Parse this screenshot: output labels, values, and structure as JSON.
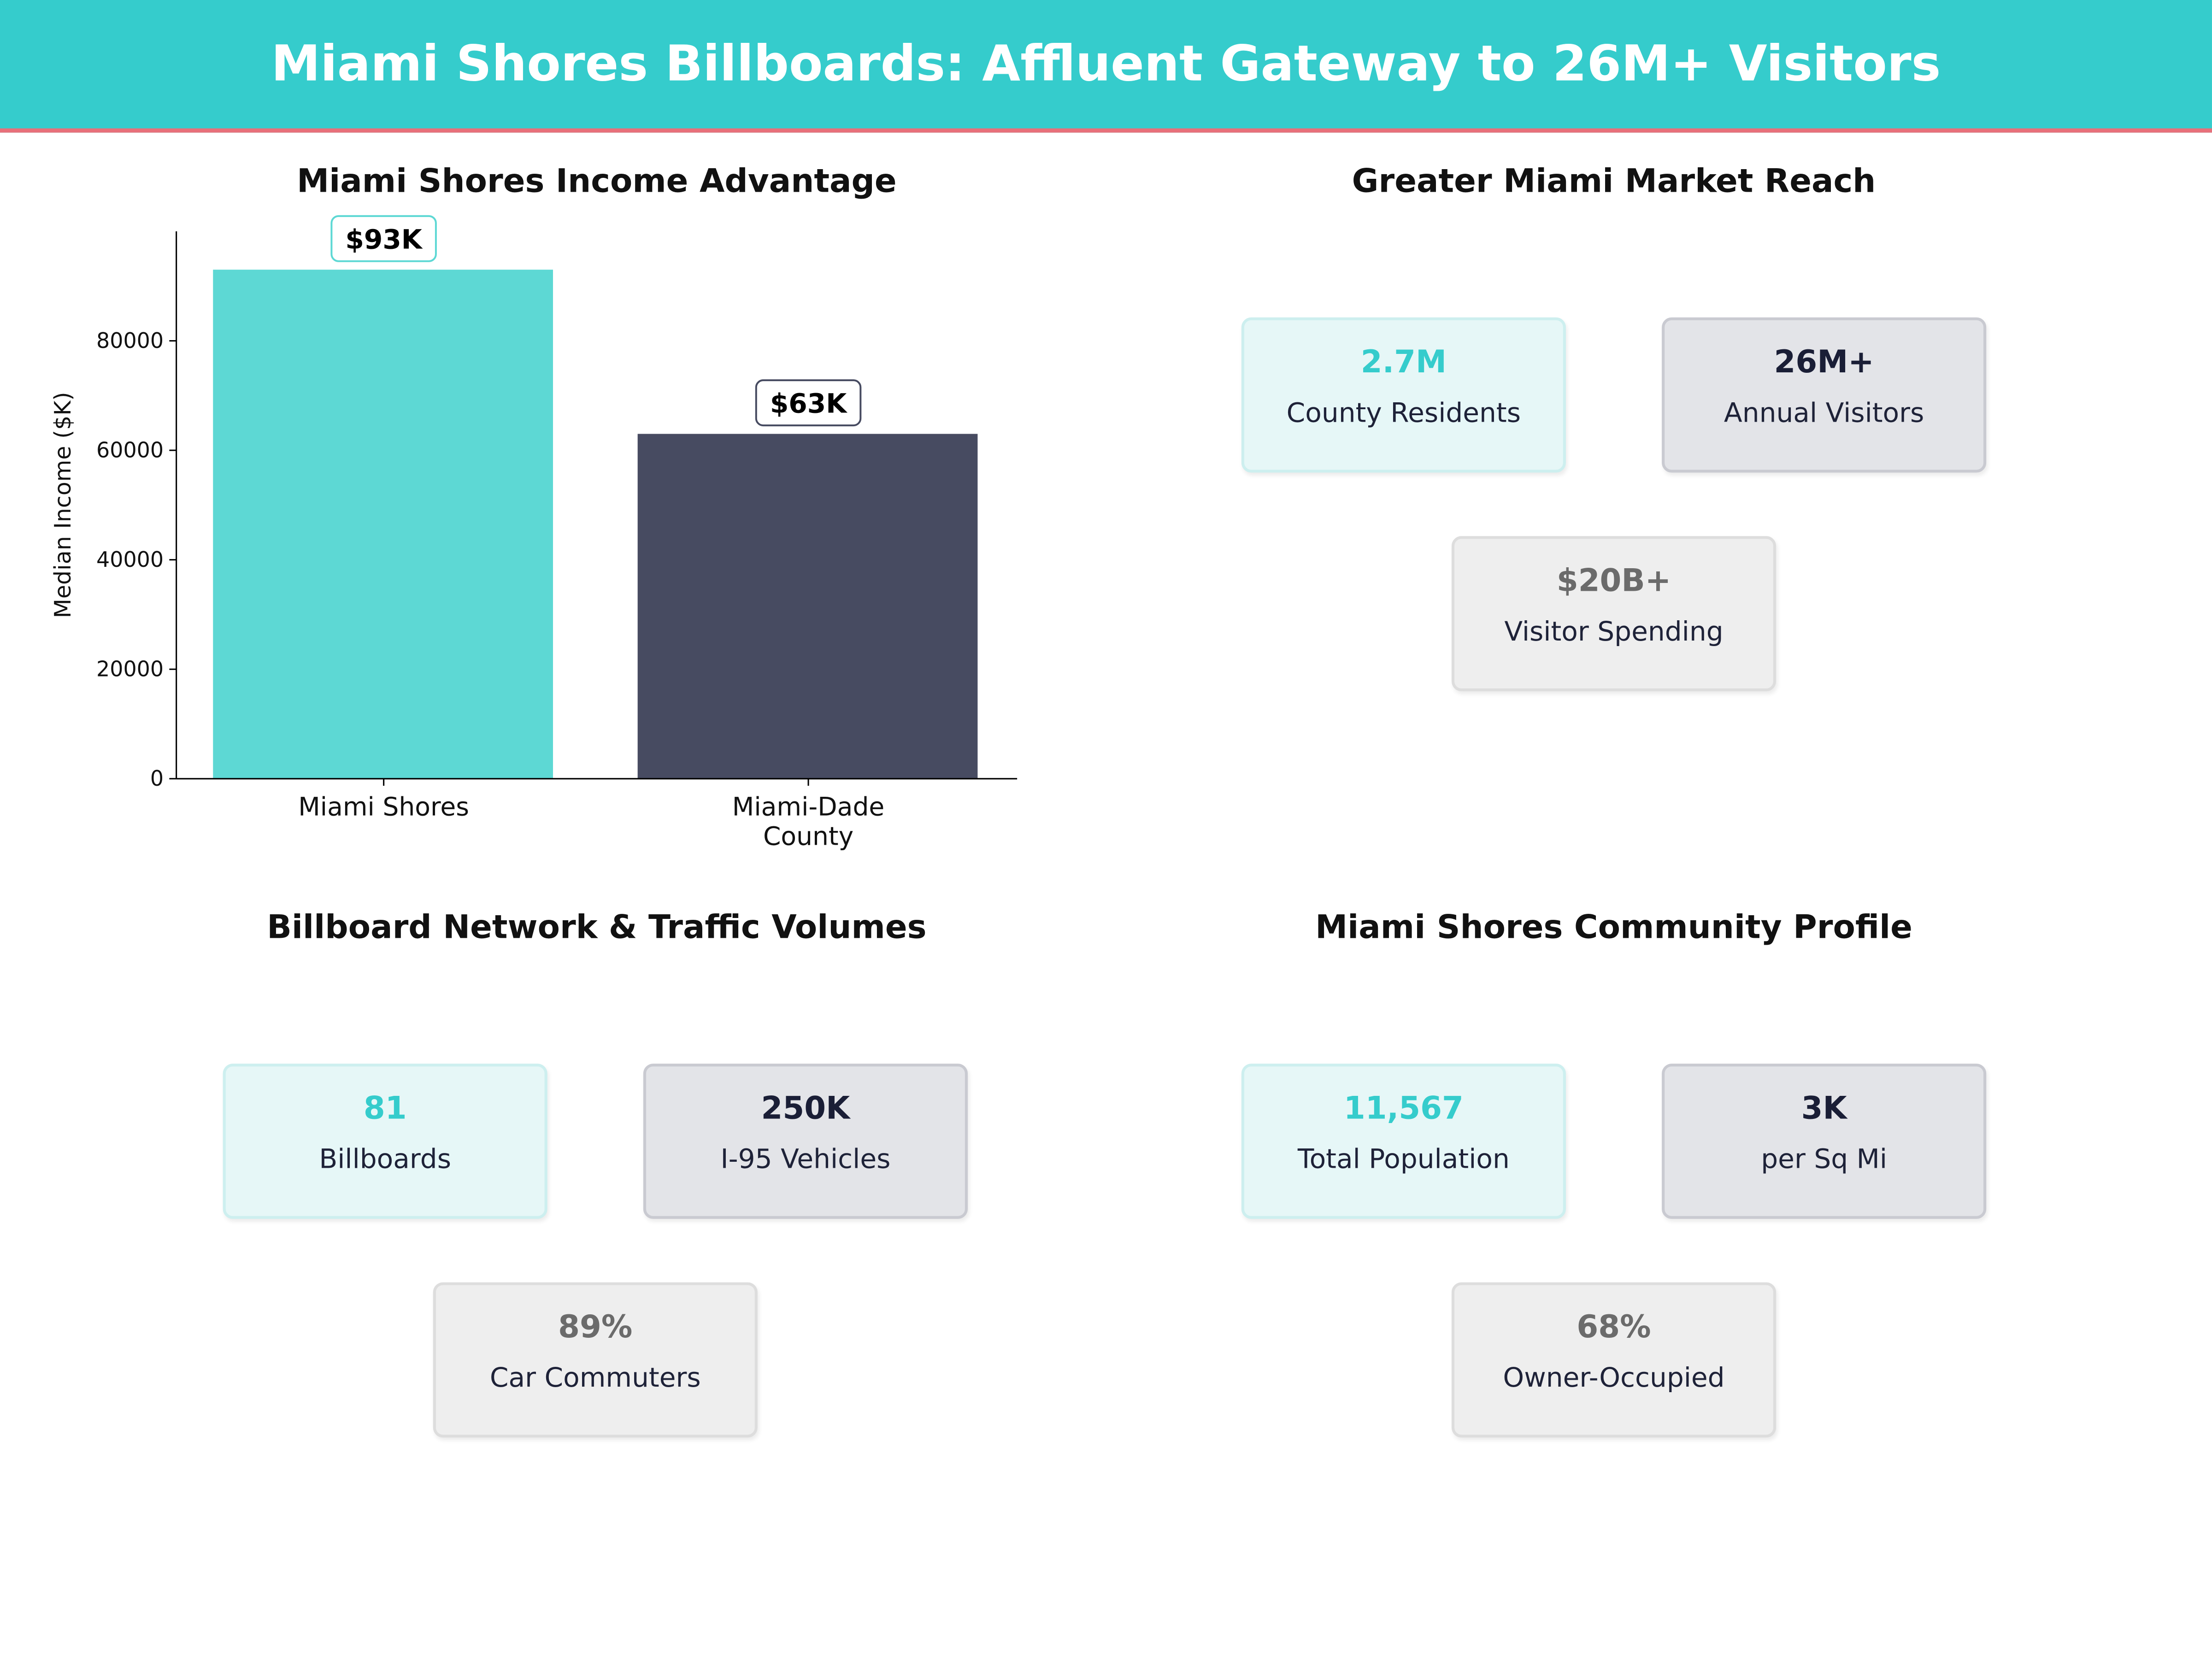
{
  "header": {
    "title": "Miami Shores Billboards: Affluent Gateway to 26M+ Visitors"
  },
  "colors": {
    "teal": "#35CCCC",
    "dark": "#474B61",
    "bar1": "#5DD8D4",
    "accent_line": "#E8707A"
  },
  "chart_data": {
    "type": "bar",
    "title": "Miami Shores Income Advantage",
    "xlabel": "",
    "ylabel": "Median Income ($K)",
    "categories": [
      "Miami Shores",
      "Miami-Dade County"
    ],
    "values": [
      93000,
      63000
    ],
    "data_labels": [
      "$93K",
      "$63K"
    ],
    "ylim": [
      0,
      100000
    ],
    "yticks": [
      "0",
      "20000",
      "40000",
      "60000",
      "80000"
    ],
    "grid": false
  },
  "panels": [
    {
      "title": "Greater Miami Market Reach",
      "cards": [
        {
          "value": "2.7M",
          "label": "County Residents",
          "style": "teal"
        },
        {
          "value": "26M+",
          "label": "Annual Visitors",
          "style": "dark"
        },
        {
          "value": "$20B+",
          "label": "Visitor Spending",
          "style": "gray"
        }
      ]
    },
    {
      "title": "Billboard Network & Traffic Volumes",
      "cards": [
        {
          "value": "81",
          "label": "Billboards",
          "style": "teal"
        },
        {
          "value": "250K",
          "label": "I-95 Vehicles",
          "style": "dark"
        },
        {
          "value": "89%",
          "label": "Car Commuters",
          "style": "gray"
        }
      ]
    },
    {
      "title": "Miami Shores Community Profile",
      "cards": [
        {
          "value": "11,567",
          "label": "Total Population",
          "style": "teal"
        },
        {
          "value": "3K",
          "label": "per Sq Mi",
          "style": "dark"
        },
        {
          "value": "68%",
          "label": "Owner-Occupied",
          "style": "gray"
        }
      ]
    }
  ]
}
